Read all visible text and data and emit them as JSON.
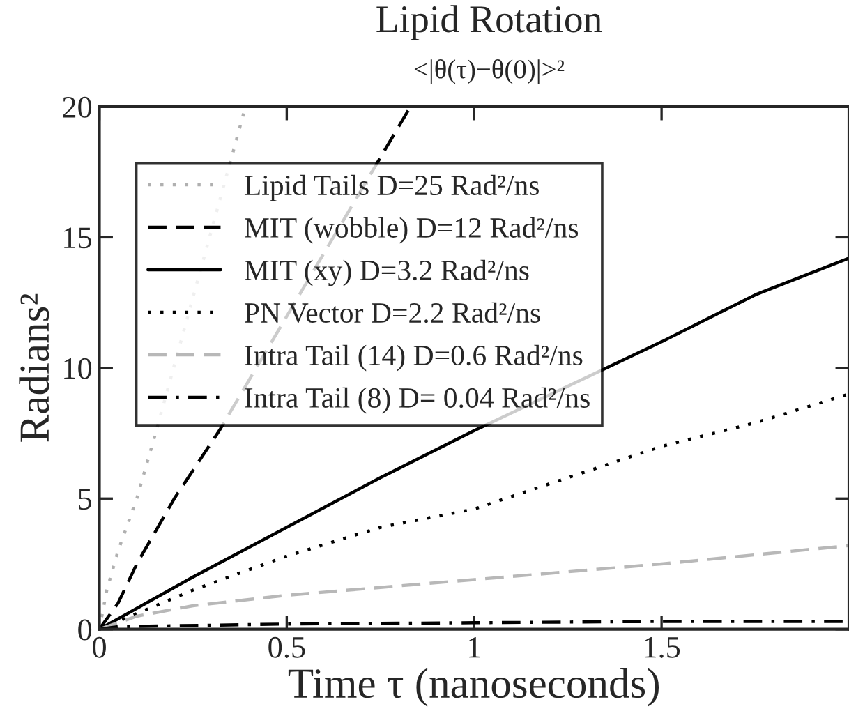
{
  "chart_data": {
    "type": "line",
    "title": "Lipid Rotation",
    "subtitle": "<|θ(τ)−θ(0)|>²",
    "xlabel": "Time τ (nanoseconds)",
    "ylabel": "Radians²",
    "xlim": [
      0,
      2
    ],
    "xticks": [
      0,
      0.5,
      1,
      1.5
    ],
    "ylim": [
      0,
      20
    ],
    "yticks": [
      0,
      5,
      10,
      15,
      20
    ],
    "legend": "top left",
    "series": [
      {
        "name": "Lipid Tails D=25 Rad²/ns",
        "color": "#b0b0b0",
        "line_style": "dotted",
        "x": [
          0,
          0.02,
          0.05,
          0.1,
          0.15,
          0.39
        ],
        "values": [
          0,
          1.5,
          3,
          5,
          7.5,
          20
        ]
      },
      {
        "name": "MIT (wobble) D=12 Rad²/ns",
        "color": "#000000",
        "line_style": "dashed",
        "x": [
          0,
          0.05,
          0.1,
          0.2,
          0.32,
          0.83
        ],
        "values": [
          0,
          1,
          2.5,
          5,
          7.6,
          20
        ]
      },
      {
        "name": "MIT (xy) D=3.2 Rad²/ns",
        "color": "#000000",
        "line_style": "solid",
        "x": [
          0,
          0.25,
          0.5,
          0.75,
          1,
          1.5,
          1.75,
          2
        ],
        "values": [
          0,
          2,
          3.9,
          5.8,
          7.6,
          11,
          12.8,
          14.2
        ]
      },
      {
        "name": "PN Vector D=2.2 Rad²/ns",
        "color": "#000000",
        "line_style": "dotted",
        "x": [
          0,
          0.25,
          0.5,
          0.75,
          1,
          1.25,
          1.5,
          1.75,
          2
        ],
        "values": [
          0,
          1.5,
          2.8,
          3.9,
          4.6,
          5.8,
          7,
          7.9,
          9
        ]
      },
      {
        "name": "Intra Tail (14) D=0.6 Rad²/ns",
        "color": "#b8b8b8",
        "line_style": "dashed",
        "x": [
          0,
          0.1,
          0.25,
          0.5,
          0.75,
          1,
          1.5,
          2
        ],
        "values": [
          0,
          0.5,
          0.9,
          1.3,
          1.6,
          1.9,
          2.5,
          3.2
        ]
      },
      {
        "name": "Intra Tail (8) D= 0.04 Rad²/ns",
        "color": "#000000",
        "line_style": "dashdot",
        "x": [
          0,
          0.05,
          0.5,
          1,
          1.5,
          2
        ],
        "values": [
          0,
          0.1,
          0.2,
          0.25,
          0.3,
          0.3
        ]
      }
    ]
  }
}
